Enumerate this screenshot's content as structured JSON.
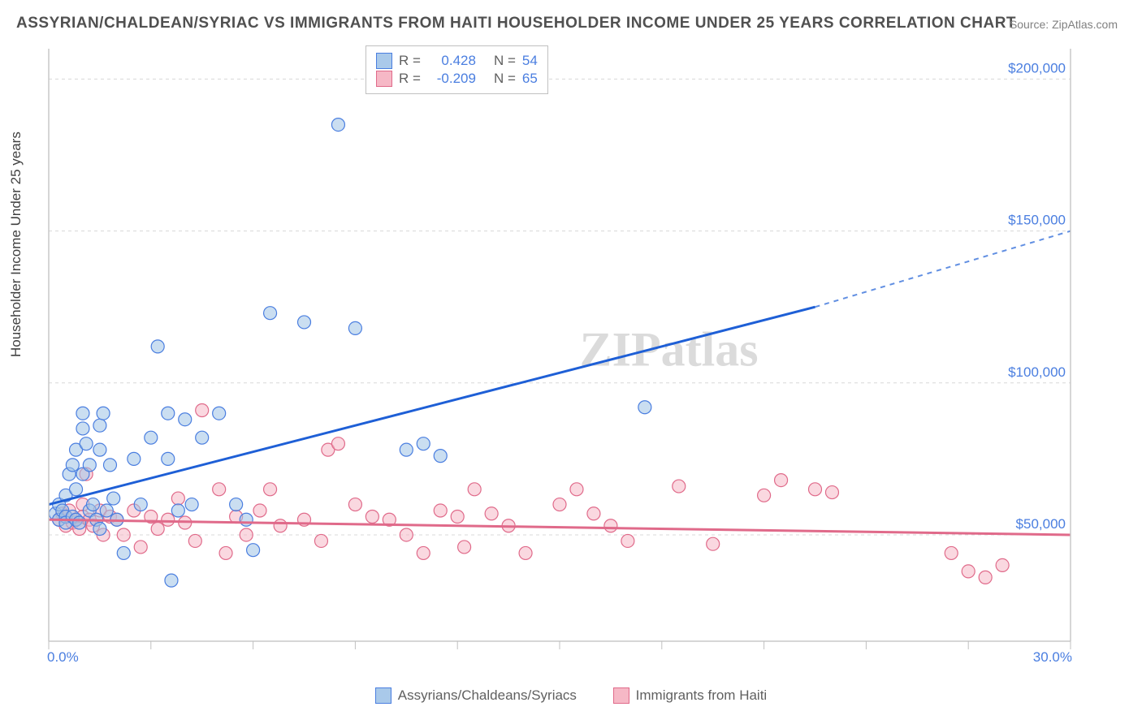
{
  "title": "ASSYRIAN/CHALDEAN/SYRIAC VS IMMIGRANTS FROM HAITI HOUSEHOLDER INCOME UNDER 25 YEARS CORRELATION CHART",
  "source": "Source: ZipAtlas.com",
  "ylabel": "Householder Income Under 25 years",
  "watermark": "ZIPatlas",
  "chart": {
    "type": "scatter",
    "xlim": [
      0,
      30
    ],
    "ylim": [
      15000,
      210000
    ],
    "ytick_values": [
      50000,
      100000,
      150000,
      200000
    ],
    "ytick_labels": [
      "$50,000",
      "$100,000",
      "$150,000",
      "$200,000"
    ],
    "xtick_values": [
      0,
      3,
      6,
      9,
      12,
      15,
      18,
      21,
      24,
      27,
      30
    ],
    "xtick_left_label": "0.0%",
    "xtick_right_label": "30.0%",
    "background_color": "#ffffff",
    "grid_color": "#d8d8d8",
    "marker_radius": 8,
    "series_blue": {
      "label": "Assyrians/Chaldeans/Syriacs",
      "fill": "#9ec3e6",
      "stroke": "#4a7ee0",
      "R": "0.428",
      "N": "54",
      "trend": {
        "x1": 0,
        "y1": 60000,
        "x2": 22.5,
        "y2": 125000,
        "x2_ext": 30,
        "y2_ext": 150000
      },
      "points": [
        [
          0.2,
          57000
        ],
        [
          0.3,
          60000
        ],
        [
          0.3,
          55000
        ],
        [
          0.4,
          58000
        ],
        [
          0.5,
          63000
        ],
        [
          0.5,
          56000
        ],
        [
          0.5,
          54000
        ],
        [
          0.6,
          70000
        ],
        [
          0.7,
          73000
        ],
        [
          0.7,
          56000
        ],
        [
          0.8,
          78000
        ],
        [
          0.8,
          65000
        ],
        [
          0.8,
          55000
        ],
        [
          0.9,
          54000
        ],
        [
          1.0,
          90000
        ],
        [
          1.0,
          85000
        ],
        [
          1.0,
          70000
        ],
        [
          1.1,
          80000
        ],
        [
          1.2,
          73000
        ],
        [
          1.2,
          58000
        ],
        [
          1.3,
          60000
        ],
        [
          1.4,
          55000
        ],
        [
          1.5,
          86000
        ],
        [
          1.5,
          78000
        ],
        [
          1.5,
          52000
        ],
        [
          1.6,
          90000
        ],
        [
          1.7,
          58000
        ],
        [
          1.8,
          73000
        ],
        [
          1.9,
          62000
        ],
        [
          2.0,
          55000
        ],
        [
          2.2,
          44000
        ],
        [
          2.5,
          75000
        ],
        [
          2.7,
          60000
        ],
        [
          3.0,
          82000
        ],
        [
          3.2,
          112000
        ],
        [
          3.5,
          90000
        ],
        [
          3.5,
          75000
        ],
        [
          3.6,
          35000
        ],
        [
          3.8,
          58000
        ],
        [
          4.0,
          88000
        ],
        [
          4.2,
          60000
        ],
        [
          4.5,
          82000
        ],
        [
          5.0,
          90000
        ],
        [
          5.5,
          60000
        ],
        [
          5.8,
          55000
        ],
        [
          6.0,
          45000
        ],
        [
          6.5,
          123000
        ],
        [
          7.5,
          120000
        ],
        [
          8.5,
          185000
        ],
        [
          9.0,
          118000
        ],
        [
          10.5,
          78000
        ],
        [
          11.0,
          80000
        ],
        [
          11.5,
          76000
        ],
        [
          17.5,
          92000
        ]
      ]
    },
    "series_pink": {
      "label": "Immigrants from Haiti",
      "fill": "#f6b8c6",
      "stroke": "#e06a8a",
      "R": "-0.209",
      "N": "65",
      "trend": {
        "x1": 0,
        "y1": 55000,
        "x2": 30,
        "y2": 50000
      },
      "points": [
        [
          0.3,
          55000
        ],
        [
          0.4,
          57000
        ],
        [
          0.5,
          53000
        ],
        [
          0.5,
          56000
        ],
        [
          0.6,
          58000
        ],
        [
          0.7,
          54000
        ],
        [
          0.8,
          55000
        ],
        [
          0.9,
          52000
        ],
        [
          1.0,
          60000
        ],
        [
          1.0,
          56000
        ],
        [
          1.1,
          70000
        ],
        [
          1.2,
          55000
        ],
        [
          1.3,
          53000
        ],
        [
          1.5,
          58000
        ],
        [
          1.6,
          50000
        ],
        [
          1.8,
          56000
        ],
        [
          2.0,
          55000
        ],
        [
          2.2,
          50000
        ],
        [
          2.5,
          58000
        ],
        [
          2.7,
          46000
        ],
        [
          3.0,
          56000
        ],
        [
          3.2,
          52000
        ],
        [
          3.5,
          55000
        ],
        [
          3.8,
          62000
        ],
        [
          4.0,
          54000
        ],
        [
          4.3,
          48000
        ],
        [
          4.5,
          91000
        ],
        [
          5.0,
          65000
        ],
        [
          5.2,
          44000
        ],
        [
          5.5,
          56000
        ],
        [
          5.8,
          50000
        ],
        [
          6.2,
          58000
        ],
        [
          6.5,
          65000
        ],
        [
          6.8,
          53000
        ],
        [
          7.5,
          55000
        ],
        [
          8.0,
          48000
        ],
        [
          8.2,
          78000
        ],
        [
          8.5,
          80000
        ],
        [
          9.0,
          60000
        ],
        [
          9.5,
          56000
        ],
        [
          10.0,
          55000
        ],
        [
          10.5,
          50000
        ],
        [
          11.0,
          44000
        ],
        [
          11.5,
          58000
        ],
        [
          12.0,
          56000
        ],
        [
          12.2,
          46000
        ],
        [
          12.5,
          65000
        ],
        [
          13.0,
          57000
        ],
        [
          13.5,
          53000
        ],
        [
          14.0,
          44000
        ],
        [
          15.0,
          60000
        ],
        [
          15.5,
          65000
        ],
        [
          16.0,
          57000
        ],
        [
          16.5,
          53000
        ],
        [
          17.0,
          48000
        ],
        [
          18.5,
          66000
        ],
        [
          19.5,
          47000
        ],
        [
          21.0,
          63000
        ],
        [
          21.5,
          68000
        ],
        [
          22.5,
          65000
        ],
        [
          23.0,
          64000
        ],
        [
          26.5,
          44000
        ],
        [
          27.0,
          38000
        ],
        [
          27.5,
          36000
        ],
        [
          28.0,
          40000
        ]
      ]
    }
  },
  "legend_stats": {
    "r_label": "R =",
    "n_label": "N ="
  }
}
